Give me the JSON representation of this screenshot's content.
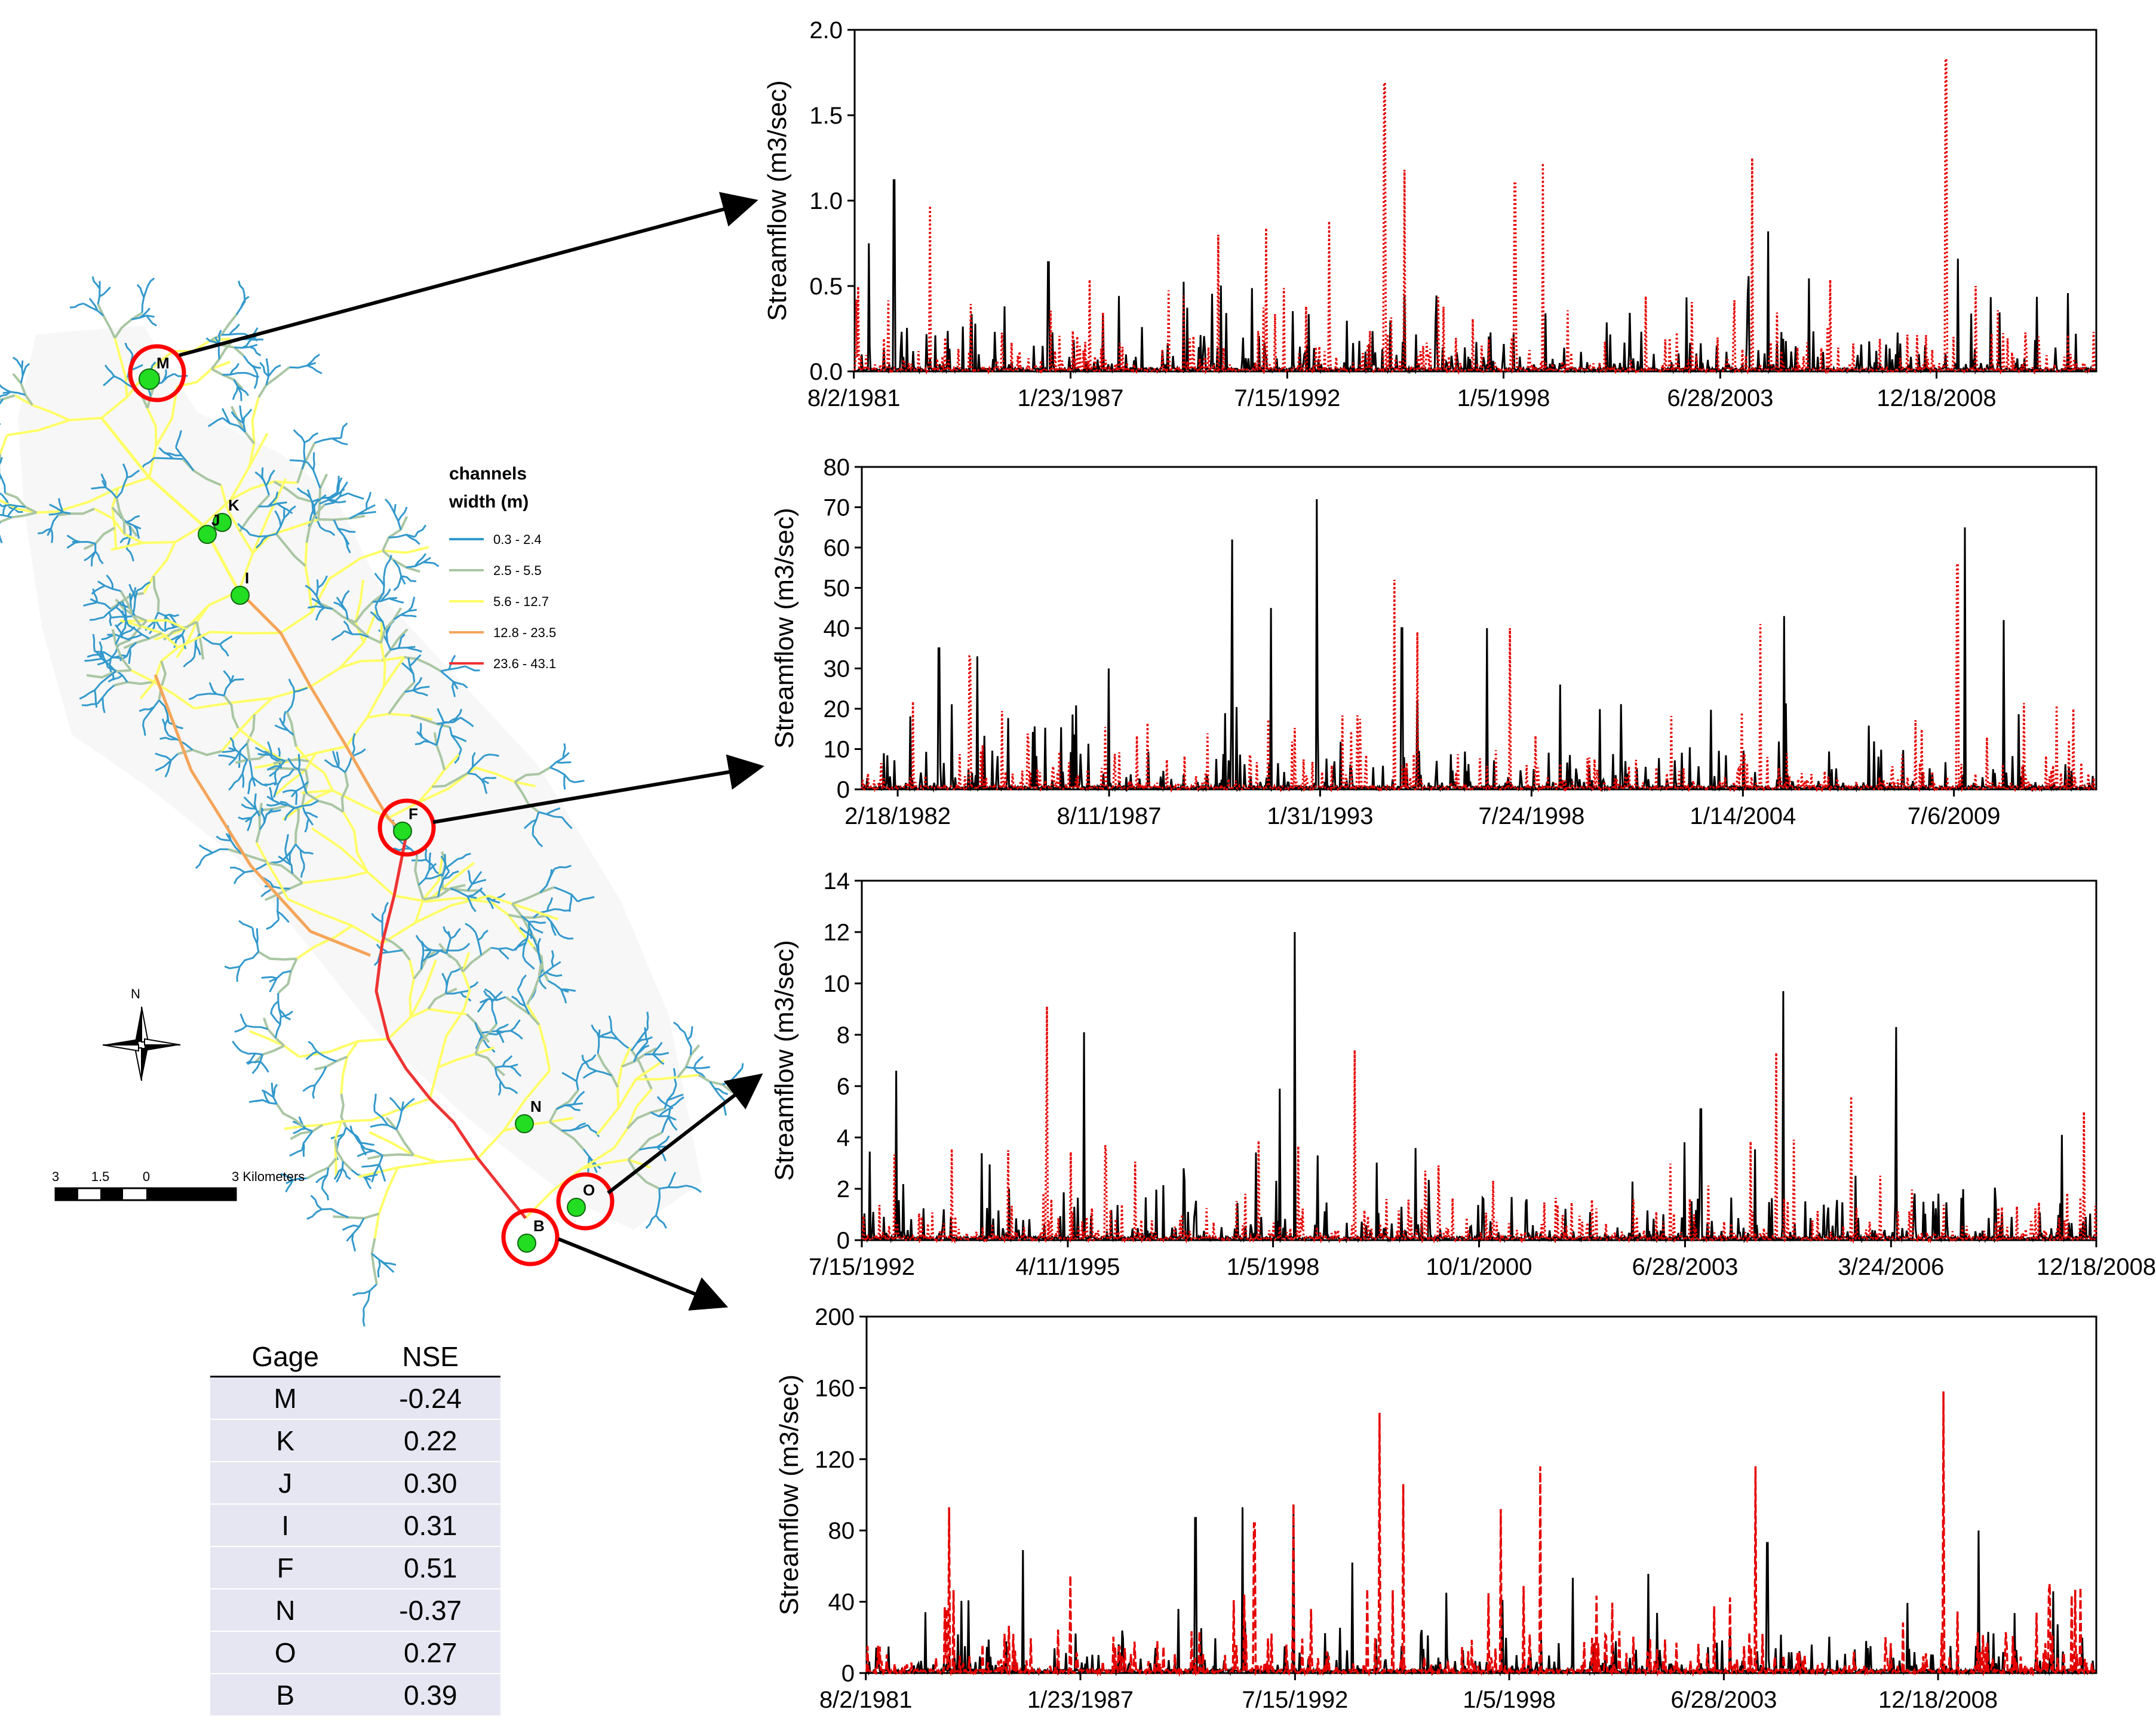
{
  "colors": {
    "observed": "#000000",
    "simulated": "#e50000",
    "accent": "#ff0000",
    "gage": "#22dd22",
    "ch1": "#3399cc",
    "ch2": "#a9c6a3",
    "ch3": "#ffff66",
    "ch4": "#f4a55a",
    "ch5": "#ee3333"
  },
  "legend": {
    "title1": "channels",
    "title2": "width (m)",
    "classes": [
      "0.3 - 2.4",
      "2.5 - 5.5",
      "5.6 - 12.7",
      "12.8 - 23.5",
      "23.6 - 43.1"
    ]
  },
  "map": {
    "north_label": "N",
    "scale_labels": [
      "3",
      "1.5",
      "0",
      "3 Kilometers"
    ],
    "gages": [
      "M",
      "K",
      "J",
      "I",
      "F",
      "N",
      "O",
      "B"
    ]
  },
  "table": {
    "headers": [
      "Gage",
      "NSE"
    ],
    "rows": [
      [
        "M",
        "-0.24"
      ],
      [
        "K",
        "0.22"
      ],
      [
        "J",
        "0.30"
      ],
      [
        "I",
        "0.31"
      ],
      [
        "F",
        "0.51"
      ],
      [
        "N",
        "-0.37"
      ],
      [
        "O",
        "0.27"
      ],
      [
        "B",
        "0.39"
      ]
    ]
  },
  "chart_data": [
    {
      "type": "line",
      "gage": "M",
      "ylabel": "Streamflow (m3/sec)",
      "ylim": [
        0,
        2.0
      ],
      "yticks": [
        "0.0",
        "0.5",
        "1.0",
        "1.5",
        "2.0"
      ],
      "xticks": [
        "8/2/1981",
        "1/23/1987",
        "7/15/1992",
        "1/5/1998",
        "6/28/2003",
        "12/18/2008"
      ],
      "x_start": 1981.6,
      "x_end": 2013.0,
      "xtick_pos": [
        1981.58,
        1987.06,
        1992.54,
        1998.01,
        2003.49,
        2008.96
      ],
      "seed": 11,
      "series": [
        {
          "name": "observed",
          "peaks": [
            [
              1982.6,
              1.12
            ],
            [
              1981.95,
              0.75
            ],
            [
              1986.5,
              0.64
            ],
            [
              2004.7,
              0.82
            ],
            [
              2009.5,
              0.66
            ]
          ]
        },
        {
          "name": "simulated",
          "peaks": [
            [
              1983.5,
              0.97
            ],
            [
              1995.0,
              1.69
            ],
            [
              1995.5,
              1.18
            ],
            [
              1998.3,
              1.1
            ],
            [
              1999.0,
              1.22
            ],
            [
              2004.3,
              1.25
            ],
            [
              2009.2,
              1.83
            ],
            [
              1993.6,
              0.88
            ],
            [
              1990.8,
              0.8
            ],
            [
              1992.0,
              0.84
            ]
          ]
        }
      ]
    },
    {
      "type": "line",
      "gage": "F",
      "ylabel": "Streamflow (m3/sec)",
      "ylim": [
        0,
        80
      ],
      "yticks": [
        "0",
        "10",
        "20",
        "30",
        "40",
        "50",
        "60",
        "70",
        "80"
      ],
      "xticks": [
        "2/18/1982",
        "8/11/1987",
        "1/31/1993",
        "7/24/1998",
        "1/14/2004",
        "7/6/2009"
      ],
      "x_start": 1981.2,
      "x_end": 2013.2,
      "xtick_pos": [
        1982.13,
        1987.61,
        1993.08,
        1998.56,
        2004.04,
        2009.51
      ],
      "seed": 23,
      "series": [
        {
          "name": "observed",
          "peaks": [
            [
              1983.2,
              35
            ],
            [
              1984.2,
              33
            ],
            [
              1987.6,
              30
            ],
            [
              1990.8,
              62
            ],
            [
              1991.8,
              45
            ],
            [
              1993.0,
              72
            ],
            [
              1995.2,
              40
            ],
            [
              1997.4,
              40
            ],
            [
              1999.3,
              26
            ],
            [
              2005.1,
              43
            ],
            [
              2009.8,
              65
            ],
            [
              2010.8,
              42
            ]
          ]
        },
        {
          "name": "simulated",
          "peaks": [
            [
              1984.0,
              33
            ],
            [
              1995.0,
              52
            ],
            [
              1995.6,
              39
            ],
            [
              1998.0,
              40
            ],
            [
              2004.5,
              41
            ],
            [
              2009.6,
              56
            ],
            [
              2012.6,
              20
            ]
          ]
        }
      ]
    },
    {
      "type": "line",
      "gage": "O",
      "ylabel": "Streamflow (m3/sec)",
      "ylim": [
        0,
        14
      ],
      "yticks": [
        "0",
        "2",
        "4",
        "6",
        "8",
        "10",
        "12",
        "14"
      ],
      "xticks": [
        "7/15/1992",
        "4/11/1995",
        "1/5/1998",
        "10/1/2000",
        "6/28/2003",
        "3/24/2006",
        "12/18/2008"
      ],
      "x_start": 1992.54,
      "x_end": 2008.96,
      "xtick_pos": [
        1992.54,
        1995.28,
        1998.01,
        2000.75,
        2003.49,
        2006.23,
        2008.96
      ],
      "seed": 37,
      "series": [
        {
          "name": "observed",
          "peaks": [
            [
              1993.0,
              6.6
            ],
            [
              1995.5,
              8.1
            ],
            [
              1998.1,
              5.9
            ],
            [
              1998.3,
              12.0
            ],
            [
              2003.7,
              5.1
            ],
            [
              2004.8,
              9.7
            ],
            [
              2006.3,
              8.3
            ],
            [
              2008.5,
              4.1
            ]
          ]
        },
        {
          "name": "simulated",
          "peaks": [
            [
              1995.0,
              9.1
            ],
            [
              1999.1,
              7.4
            ],
            [
              2004.7,
              7.3
            ],
            [
              2005.7,
              5.6
            ],
            [
              2008.8,
              5.0
            ]
          ]
        }
      ]
    },
    {
      "type": "line",
      "gage": "B",
      "ylabel": "Streamflow (m3/sec)",
      "ylim": [
        0,
        200
      ],
      "yticks": [
        "0",
        "40",
        "80",
        "120",
        "160",
        "200"
      ],
      "xticks": [
        "8/2/1981",
        "1/23/1987",
        "7/15/1992",
        "1/5/1998",
        "6/28/2003",
        "12/18/2008"
      ],
      "x_start": 1981.6,
      "x_end": 2013.0,
      "xtick_pos": [
        1981.58,
        1987.06,
        1992.54,
        1998.01,
        2003.49,
        2008.96
      ],
      "seed": 53,
      "series": [
        {
          "name": "observed",
          "peaks": [
            [
              1985.6,
              69
            ],
            [
              1990.0,
              87
            ],
            [
              1991.2,
              93
            ],
            [
              1992.5,
              93
            ],
            [
              1994.0,
              62
            ],
            [
              2004.6,
              73
            ],
            [
              2010.0,
              80
            ]
          ]
        },
        {
          "name": "simulated",
          "peaks": [
            [
              1983.7,
              93
            ],
            [
              1991.5,
              84
            ],
            [
              1992.5,
              95
            ],
            [
              1994.7,
              146
            ],
            [
              1995.3,
              106
            ],
            [
              1997.8,
              92
            ],
            [
              1998.8,
              116
            ],
            [
              2004.3,
              116
            ],
            [
              2009.1,
              158
            ],
            [
              2012.6,
              48
            ]
          ]
        }
      ]
    }
  ]
}
